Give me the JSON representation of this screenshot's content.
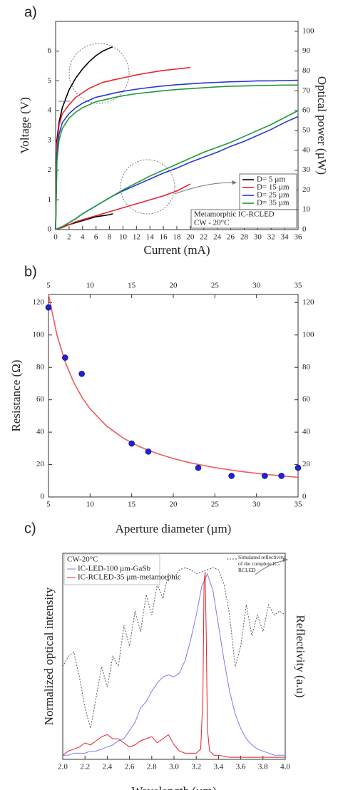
{
  "chart_data": [
    {
      "type": "line",
      "panel_label": "a)",
      "x": [
        0,
        0.2,
        0.5,
        1,
        2,
        3,
        4,
        5,
        6,
        7,
        8,
        8.5,
        10,
        12,
        14,
        16,
        18,
        20,
        22,
        24,
        26,
        28,
        30,
        32,
        34,
        36
      ],
      "xlim": [
        0,
        36
      ],
      "xticks": [
        0,
        2,
        4,
        6,
        8,
        10,
        12,
        14,
        16,
        18,
        20,
        22,
        24,
        26,
        28,
        30,
        32,
        34,
        36
      ],
      "ylim": [
        0,
        7
      ],
      "yticks": [
        0,
        1,
        2,
        3,
        4,
        5,
        6
      ],
      "y2lim": [
        0,
        105
      ],
      "y2ticks": [
        0,
        10,
        20,
        30,
        40,
        50,
        60,
        70,
        80,
        90,
        100
      ],
      "xlabel": "Current (mA)",
      "ylabel": "Voltage (V)",
      "y2label": "Optical power (µW)",
      "legend": "lower right",
      "annotations": [
        "Metamorphic IC-RCLED",
        "CW - 20°C"
      ],
      "series": [
        {
          "name": "D=  5 µm",
          "color": "#000000",
          "values": [
            0,
            3.0,
            3.6,
            4.1,
            4.7,
            5.1,
            5.4,
            5.65,
            5.85,
            6.0,
            6.1,
            6.15,
            null,
            null,
            null,
            null,
            null,
            null,
            null,
            null,
            null,
            null,
            null,
            null,
            null,
            null
          ]
        },
        {
          "name": "D= 15 µm",
          "color": "#e8262d",
          "values": [
            0,
            2.8,
            3.5,
            3.9,
            4.2,
            4.45,
            4.6,
            4.75,
            4.85,
            4.95,
            5.0,
            5.03,
            5.1,
            5.2,
            5.28,
            5.35,
            5.4,
            5.45,
            null,
            null,
            null,
            null,
            null,
            null,
            null,
            null
          ]
        },
        {
          "name": "D= 25 µm",
          "color": "#2b35d8",
          "values": [
            0,
            2.5,
            3.2,
            3.6,
            3.9,
            4.1,
            4.25,
            4.35,
            4.45,
            4.5,
            4.55,
            4.58,
            4.65,
            4.72,
            4.78,
            4.83,
            4.87,
            4.9,
            4.93,
            4.95,
            4.97,
            4.98,
            5.0,
            5.0,
            5.01,
            5.02
          ]
        },
        {
          "name": "D= 35 µm",
          "color": "#1f9a3a",
          "values": [
            0,
            2.3,
            3.0,
            3.4,
            3.75,
            3.95,
            4.1,
            4.2,
            4.3,
            4.35,
            4.4,
            4.43,
            4.5,
            4.57,
            4.62,
            4.67,
            4.71,
            4.74,
            4.77,
            4.8,
            4.82,
            4.83,
            4.84,
            4.85,
            4.86,
            4.86
          ]
        },
        {
          "color": "#000000",
          "axis": "y2",
          "values": [
            0,
            0.3,
            0.8,
            1.5,
            2.5,
            3.5,
            4.5,
            5.5,
            6.5,
            7,
            7.5,
            8,
            null,
            null,
            null,
            null,
            null,
            null,
            null,
            null,
            null,
            null,
            null,
            null,
            null,
            null
          ]
        },
        {
          "color": "#e8262d",
          "axis": "y2",
          "values": [
            0,
            0.2,
            0.5,
            1,
            2.5,
            4,
            5,
            6,
            7,
            8,
            9,
            9.5,
            11,
            13,
            15,
            17,
            19.5,
            23,
            null,
            null,
            null,
            null,
            null,
            null,
            null,
            null
          ]
        },
        {
          "color": "#2b35d8",
          "axis": "y2",
          "values": [
            0,
            0.3,
            0.8,
            1.5,
            3.5,
            5.5,
            8,
            10,
            12,
            14,
            16,
            17,
            19.5,
            22.5,
            25.5,
            28.5,
            31,
            34,
            36.5,
            39,
            42,
            44.5,
            47.5,
            50.5,
            54,
            57
          ]
        },
        {
          "color": "#1f9a3a",
          "axis": "y2",
          "values": [
            0,
            0.3,
            0.8,
            1.5,
            3.5,
            5.5,
            8,
            10,
            12,
            14,
            16,
            17,
            20,
            23.5,
            27,
            30,
            33,
            36,
            39,
            41.5,
            44,
            47,
            50,
            53,
            56.5,
            60
          ]
        }
      ]
    },
    {
      "type": "scatter",
      "panel_label": "b)",
      "xlim": [
        5,
        35
      ],
      "xticks": [
        5,
        10,
        15,
        20,
        25,
        30,
        35
      ],
      "ylim": [
        0,
        125
      ],
      "yticks": [
        0,
        20,
        40,
        60,
        80,
        100,
        120
      ],
      "mirror_axes": true,
      "xlabel": "Aperture diameter (µm)",
      "ylabel": "Resistance (Ω)",
      "series": [
        {
          "type": "line",
          "color": "#f05a5a",
          "x": [
            5,
            6,
            7,
            8,
            9,
            10,
            12,
            14,
            16,
            18,
            20,
            22,
            25,
            28,
            31,
            35
          ],
          "values": [
            125,
            100.3,
            83.4,
            71.1,
            61.7,
            54.4,
            43.7,
            36.3,
            30.9,
            26.9,
            23.7,
            21.1,
            18.1,
            15.8,
            14.0,
            12.1
          ]
        },
        {
          "type": "scatter",
          "color": "#1f22d6",
          "x": [
            5,
            7,
            9,
            15,
            17,
            23,
            27,
            31,
            33,
            35
          ],
          "values": [
            117,
            86,
            76,
            33,
            28,
            18,
            13,
            13,
            13,
            18
          ]
        }
      ]
    },
    {
      "type": "line",
      "panel_label": "c)",
      "xlim": [
        2,
        4
      ],
      "xticks": [
        {
          "value": 2,
          "label": "2.0"
        },
        2.2,
        2.4,
        2.6,
        2.8,
        {
          "value": 3,
          "label": "3.0"
        },
        3.2,
        3.4,
        3.6,
        3.8,
        {
          "value": 4,
          "label": "4.0"
        }
      ],
      "ylim": [
        0,
        1
      ],
      "xlabel": "Wavelength (µm)",
      "ylabel": "Normalized optical intensity",
      "y2label": "Reflectivity (a.u)",
      "legend": "upper left",
      "legend_title": "CW-20°C",
      "series": [
        {
          "name": "IC-LED-100 µm-GaSb",
          "color": "#7b7bef",
          "x": [
            2.0,
            2.05,
            2.1,
            2.15,
            2.2,
            2.25,
            2.3,
            2.35,
            2.4,
            2.45,
            2.5,
            2.55,
            2.6,
            2.65,
            2.7,
            2.75,
            2.8,
            2.85,
            2.9,
            2.95,
            3.0,
            3.05,
            3.1,
            3.15,
            3.2,
            3.25,
            3.3,
            3.35,
            3.4,
            3.45,
            3.5,
            3.55,
            3.6,
            3.65,
            3.7,
            3.75,
            3.8,
            3.85,
            3.9,
            3.95,
            4.0
          ],
          "values": [
            0.02,
            0.02,
            0.03,
            0.03,
            0.03,
            0.04,
            0.04,
            0.05,
            0.06,
            0.07,
            0.09,
            0.1,
            0.14,
            0.18,
            0.25,
            0.28,
            0.33,
            0.37,
            0.4,
            0.41,
            0.4,
            0.42,
            0.48,
            0.58,
            0.7,
            0.84,
            0.9,
            0.82,
            0.65,
            0.48,
            0.33,
            0.22,
            0.15,
            0.1,
            0.07,
            0.05,
            0.04,
            0.03,
            0.02,
            0.02,
            0.02
          ]
        },
        {
          "name": "IC-RCLED-35 µm-metamorphic",
          "color": "#e8202a",
          "x": [
            2.0,
            2.05,
            2.1,
            2.15,
            2.2,
            2.25,
            2.3,
            2.35,
            2.4,
            2.45,
            2.5,
            2.55,
            2.6,
            2.65,
            2.7,
            2.75,
            2.8,
            2.85,
            2.9,
            2.95,
            3.0,
            3.05,
            3.1,
            3.15,
            3.2,
            3.24,
            3.26,
            3.27,
            3.28,
            3.29,
            3.3,
            3.32,
            3.36,
            3.4,
            3.5,
            3.6,
            3.7,
            3.8,
            3.9,
            4.0
          ],
          "values": [
            0.02,
            0.04,
            0.05,
            0.06,
            0.08,
            0.07,
            0.09,
            0.11,
            0.12,
            0.1,
            0.1,
            0.08,
            0.06,
            0.07,
            0.09,
            0.1,
            0.11,
            0.08,
            0.1,
            0.12,
            0.07,
            0.04,
            0.03,
            0.03,
            0.03,
            0.05,
            0.3,
            0.85,
            0.91,
            0.6,
            0.15,
            0.04,
            0.02,
            0.02,
            0.01,
            0.01,
            0.01,
            0.01,
            0.01,
            0.01
          ]
        },
        {
          "name": "Simulated reflectivity of the complete IC-RCLED",
          "color": "#555555",
          "dash": "2,2",
          "x": [
            2.0,
            2.05,
            2.1,
            2.15,
            2.2,
            2.25,
            2.3,
            2.35,
            2.4,
            2.45,
            2.5,
            2.55,
            2.6,
            2.65,
            2.7,
            2.75,
            2.8,
            2.85,
            2.9,
            2.95,
            3.0,
            3.05,
            3.1,
            3.15,
            3.2,
            3.25,
            3.3,
            3.35,
            3.4,
            3.45,
            3.5,
            3.55,
            3.6,
            3.65,
            3.7,
            3.75,
            3.8,
            3.85,
            3.9,
            3.95,
            4.0
          ],
          "values": [
            0.45,
            0.5,
            0.52,
            0.4,
            0.25,
            0.15,
            0.3,
            0.45,
            0.35,
            0.5,
            0.45,
            0.65,
            0.55,
            0.72,
            0.62,
            0.8,
            0.7,
            0.85,
            0.78,
            0.9,
            0.88,
            0.92,
            0.93,
            0.92,
            0.9,
            0.91,
            0.92,
            0.93,
            0.92,
            0.85,
            0.7,
            0.45,
            0.55,
            0.75,
            0.6,
            0.7,
            0.62,
            0.75,
            0.7,
            0.72,
            0.7
          ]
        }
      ]
    }
  ]
}
